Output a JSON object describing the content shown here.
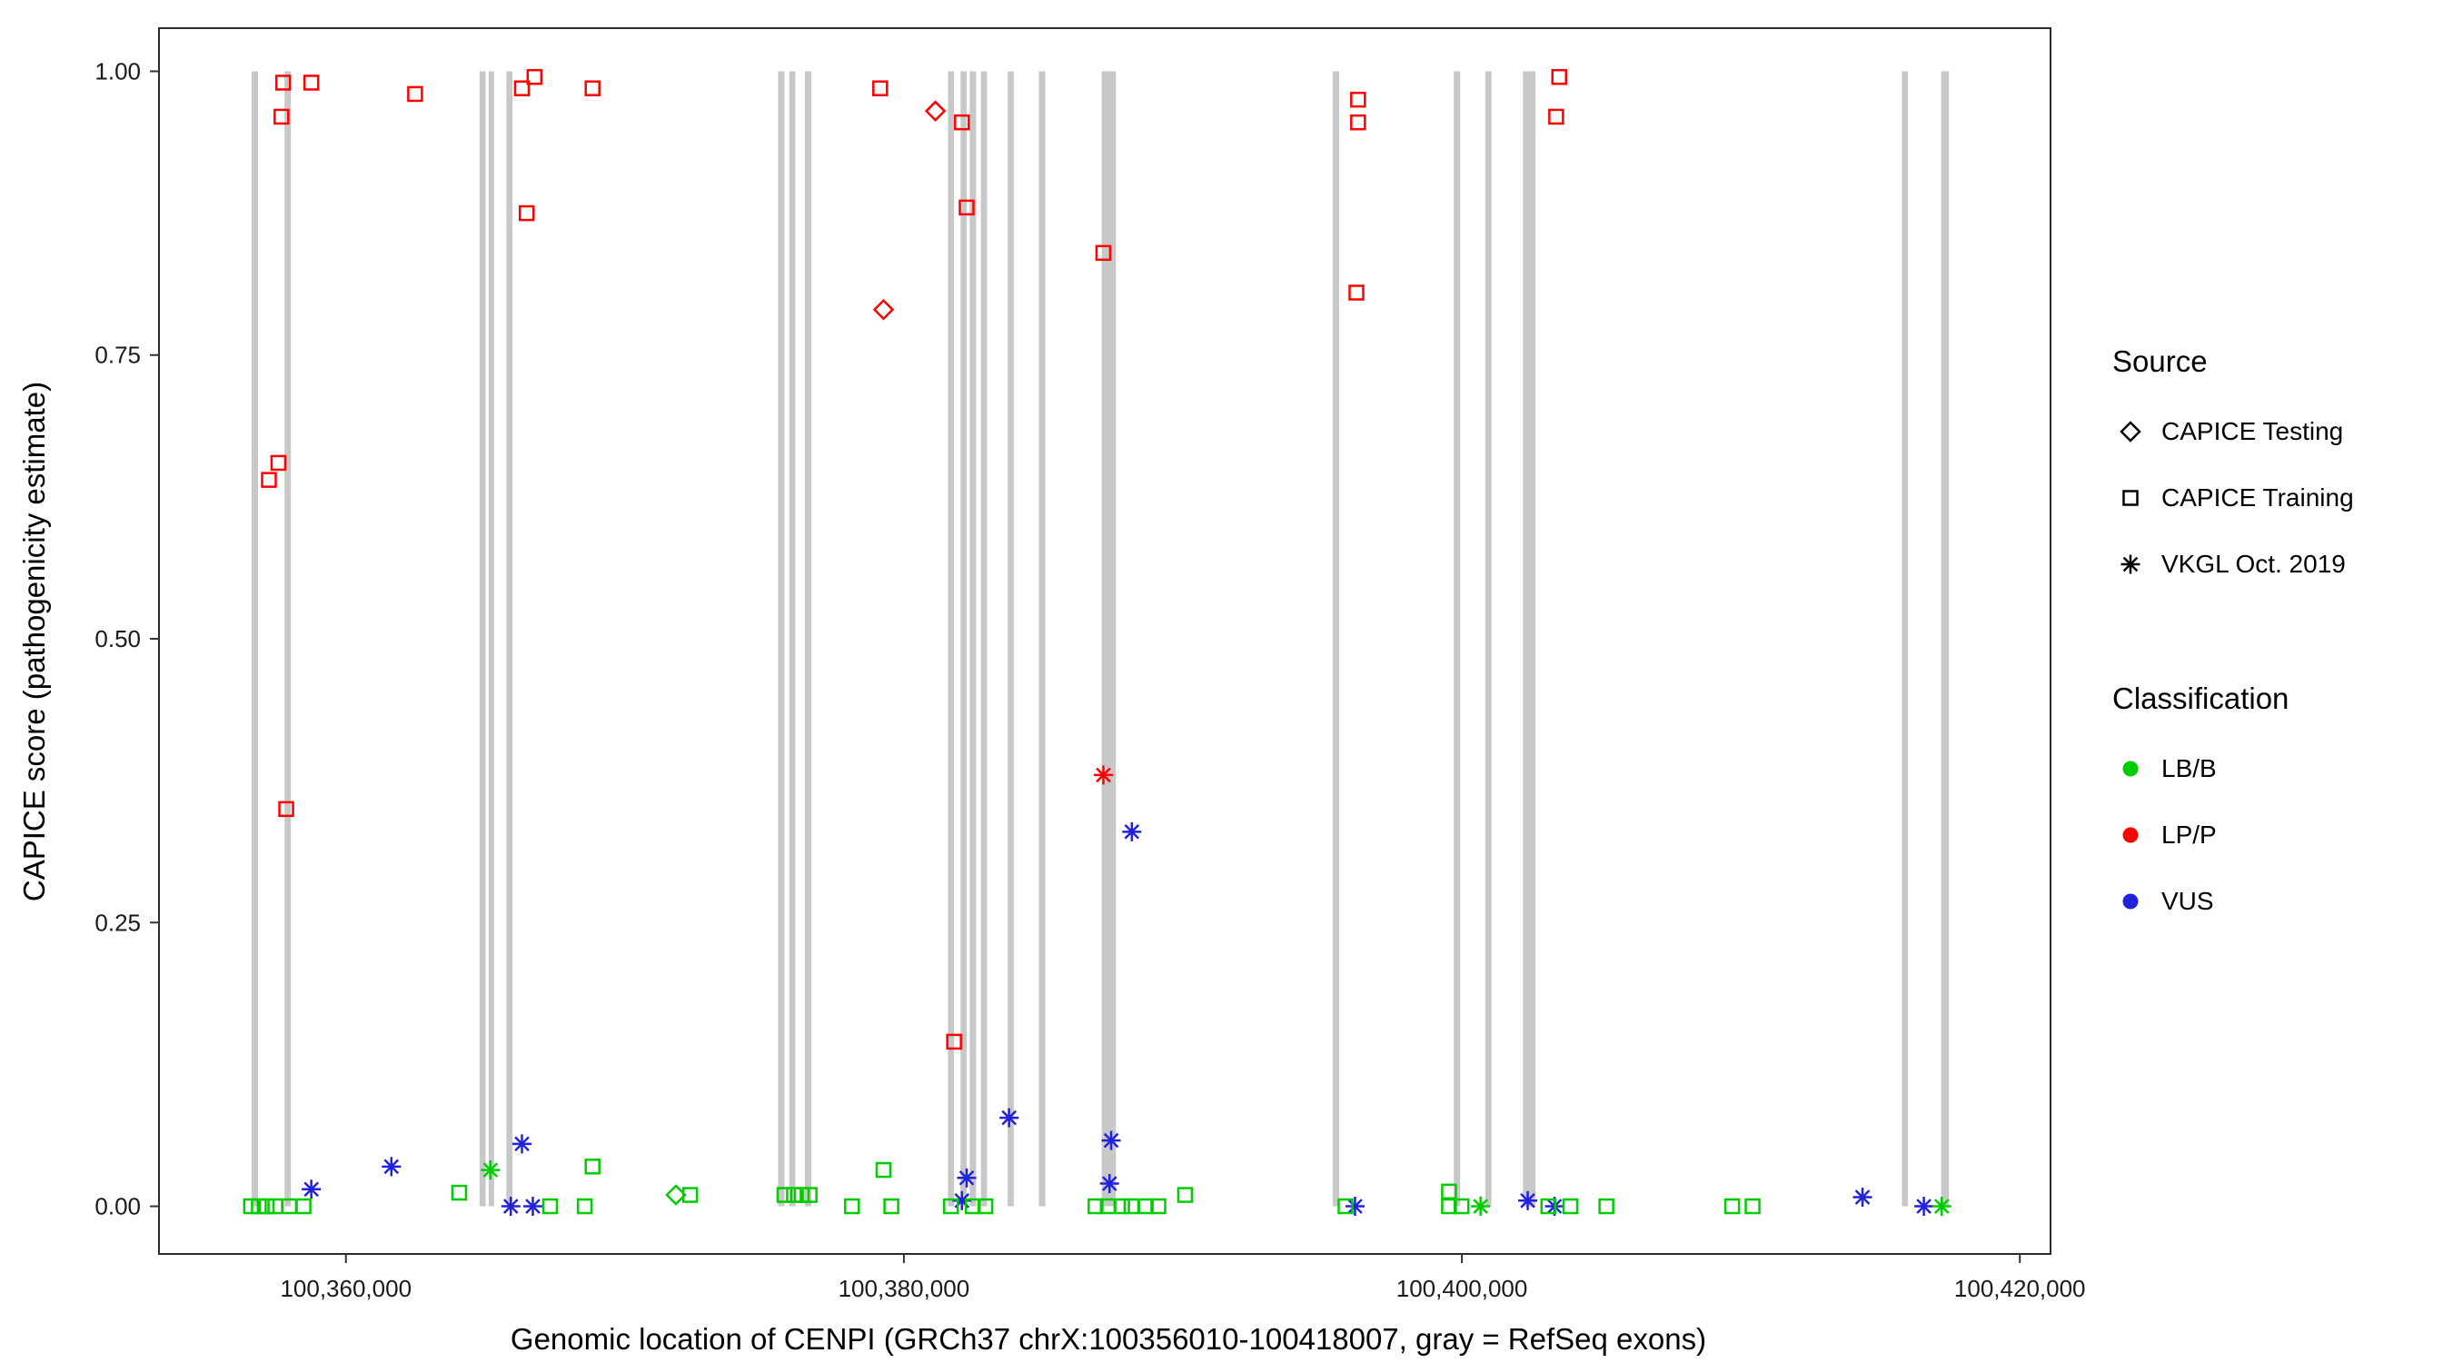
{
  "legend": {
    "source_title": "Source",
    "source_items": [
      {
        "label": "CAPICE Testing",
        "glyph": "diamond"
      },
      {
        "label": "CAPICE Training",
        "glyph": "square"
      },
      {
        "label": "VKGL Oct. 2019",
        "glyph": "asterisk"
      }
    ],
    "class_title": "Classification",
    "class_items": [
      {
        "label": "LB/B",
        "color": "#00CC00"
      },
      {
        "label": "LP/P",
        "color": "#FF0000"
      },
      {
        "label": "VUS",
        "color": "#2222DD"
      }
    ]
  },
  "chart_data": {
    "type": "scatter",
    "title": "",
    "xlabel": "Genomic location of CENPI (GRCh37 chrX:100356010-100418007, gray = RefSeq exons)",
    "ylabel": "CAPICE score (pathogenicity estimate)",
    "xlim": [
      100353300,
      100421100
    ],
    "ylim": [
      -0.042,
      1.038
    ],
    "grid": false,
    "legend_position": "right",
    "x_ticks": [
      {
        "value": 100360000,
        "label": "100,360,000"
      },
      {
        "value": 100380000,
        "label": "100,380,000"
      },
      {
        "value": 100400000,
        "label": "100,400,000"
      },
      {
        "value": 100420000,
        "label": "100,420,000"
      }
    ],
    "y_ticks": [
      {
        "value": 0.0,
        "label": "0.00"
      },
      {
        "value": 0.25,
        "label": "0.25"
      },
      {
        "value": 0.5,
        "label": "0.50"
      },
      {
        "value": 0.75,
        "label": "0.75"
      },
      {
        "value": 1.0,
        "label": "1.00"
      }
    ],
    "exon_color": "#C8C8C8",
    "exon_value_span": [
      0.0,
      1.0
    ],
    "class_colors": {
      "LB/B": "#00CC00",
      "LP/P": "#FF0000",
      "VUS": "#2222DD"
    },
    "exons": [
      {
        "start": 100356620,
        "end": 100356850
      },
      {
        "start": 100357800,
        "end": 100358030
      },
      {
        "start": 100364790,
        "end": 100365010
      },
      {
        "start": 100365130,
        "end": 100365300
      },
      {
        "start": 100365750,
        "end": 100365970
      },
      {
        "start": 100375490,
        "end": 100375720
      },
      {
        "start": 100375890,
        "end": 100376110
      },
      {
        "start": 100376450,
        "end": 100376680
      },
      {
        "start": 100381580,
        "end": 100381800
      },
      {
        "start": 100382030,
        "end": 100382250
      },
      {
        "start": 100382360,
        "end": 100382590
      },
      {
        "start": 100382760,
        "end": 100382980
      },
      {
        "start": 100383720,
        "end": 100383940
      },
      {
        "start": 100384840,
        "end": 100385070
      },
      {
        "start": 100387090,
        "end": 100387600
      },
      {
        "start": 100395370,
        "end": 100395600
      },
      {
        "start": 100399710,
        "end": 100399940
      },
      {
        "start": 100400840,
        "end": 100401060
      },
      {
        "start": 100402190,
        "end": 100402640
      },
      {
        "start": 100415770,
        "end": 100415990
      },
      {
        "start": 100417180,
        "end": 100417460
      }
    ],
    "points": [
      {
        "x": 100357750,
        "y": 0.99,
        "source": "CAPICE Training",
        "class": "LP/P"
      },
      {
        "x": 100358760,
        "y": 0.99,
        "source": "CAPICE Training",
        "class": "LP/P"
      },
      {
        "x": 100357690,
        "y": 0.96,
        "source": "CAPICE Training",
        "class": "LP/P"
      },
      {
        "x": 100357580,
        "y": 0.655,
        "source": "CAPICE Training",
        "class": "LP/P"
      },
      {
        "x": 100357240,
        "y": 0.64,
        "source": "CAPICE Training",
        "class": "LP/P"
      },
      {
        "x": 100357860,
        "y": 0.35,
        "source": "CAPICE Training",
        "class": "LP/P"
      },
      {
        "x": 100362480,
        "y": 0.98,
        "source": "CAPICE Training",
        "class": "LP/P"
      },
      {
        "x": 100366310,
        "y": 0.985,
        "source": "CAPICE Training",
        "class": "LP/P"
      },
      {
        "x": 100366760,
        "y": 0.995,
        "source": "CAPICE Training",
        "class": "LP/P"
      },
      {
        "x": 100366480,
        "y": 0.875,
        "source": "CAPICE Training",
        "class": "LP/P"
      },
      {
        "x": 100368840,
        "y": 0.985,
        "source": "CAPICE Training",
        "class": "LP/P"
      },
      {
        "x": 100379150,
        "y": 0.985,
        "source": "CAPICE Training",
        "class": "LP/P"
      },
      {
        "x": 100382080,
        "y": 0.955,
        "source": "CAPICE Training",
        "class": "LP/P"
      },
      {
        "x": 100382250,
        "y": 0.88,
        "source": "CAPICE Training",
        "class": "LP/P"
      },
      {
        "x": 100387150,
        "y": 0.84,
        "source": "CAPICE Training",
        "class": "LP/P"
      },
      {
        "x": 100381800,
        "y": 0.145,
        "source": "CAPICE Training",
        "class": "LP/P"
      },
      {
        "x": 100396280,
        "y": 0.975,
        "source": "CAPICE Training",
        "class": "LP/P"
      },
      {
        "x": 100396280,
        "y": 0.955,
        "source": "CAPICE Training",
        "class": "LP/P"
      },
      {
        "x": 100396220,
        "y": 0.805,
        "source": "CAPICE Training",
        "class": "LP/P"
      },
      {
        "x": 100403490,
        "y": 0.995,
        "source": "CAPICE Training",
        "class": "LP/P"
      },
      {
        "x": 100403380,
        "y": 0.96,
        "source": "CAPICE Training",
        "class": "LP/P"
      },
      {
        "x": 100379270,
        "y": 0.79,
        "source": "CAPICE Testing",
        "class": "LP/P"
      },
      {
        "x": 100381130,
        "y": 0.965,
        "source": "CAPICE Testing",
        "class": "LP/P"
      },
      {
        "x": 100387150,
        "y": 0.38,
        "source": "VKGL Oct. 2019",
        "class": "LP/P"
      },
      {
        "x": 100388170,
        "y": 0.33,
        "source": "VKGL Oct. 2019",
        "class": "VUS"
      },
      {
        "x": 100383770,
        "y": 0.078,
        "source": "VKGL Oct. 2019",
        "class": "VUS"
      },
      {
        "x": 100387430,
        "y": 0.058,
        "source": "VKGL Oct. 2019",
        "class": "VUS"
      },
      {
        "x": 100358760,
        "y": 0.015,
        "source": "VKGL Oct. 2019",
        "class": "VUS"
      },
      {
        "x": 100361630,
        "y": 0.035,
        "source": "VKGL Oct. 2019",
        "class": "VUS"
      },
      {
        "x": 100365910,
        "y": 0.0,
        "source": "VKGL Oct. 2019",
        "class": "VUS"
      },
      {
        "x": 100366700,
        "y": 0.0,
        "source": "VKGL Oct. 2019",
        "class": "VUS"
      },
      {
        "x": 100366310,
        "y": 0.055,
        "source": "VKGL Oct. 2019",
        "class": "VUS"
      },
      {
        "x": 100382250,
        "y": 0.025,
        "source": "VKGL Oct. 2019",
        "class": "VUS"
      },
      {
        "x": 100382080,
        "y": 0.005,
        "source": "VKGL Oct. 2019",
        "class": "VUS"
      },
      {
        "x": 100387370,
        "y": 0.02,
        "source": "VKGL Oct. 2019",
        "class": "VUS"
      },
      {
        "x": 100396170,
        "y": 0.0,
        "source": "VKGL Oct. 2019",
        "class": "VUS"
      },
      {
        "x": 100402360,
        "y": 0.005,
        "source": "VKGL Oct. 2019",
        "class": "VUS"
      },
      {
        "x": 100403320,
        "y": 0.0,
        "source": "VKGL Oct. 2019",
        "class": "VUS"
      },
      {
        "x": 100414360,
        "y": 0.008,
        "source": "VKGL Oct. 2019",
        "class": "VUS"
      },
      {
        "x": 100416560,
        "y": 0.0,
        "source": "VKGL Oct. 2019",
        "class": "VUS"
      },
      {
        "x": 100356600,
        "y": 0.0,
        "source": "CAPICE Training",
        "class": "LB/B"
      },
      {
        "x": 100356880,
        "y": 0.0,
        "source": "CAPICE Training",
        "class": "LB/B"
      },
      {
        "x": 100357160,
        "y": 0.0,
        "source": "CAPICE Training",
        "class": "LB/B"
      },
      {
        "x": 100357470,
        "y": 0.0,
        "source": "CAPICE Training",
        "class": "LB/B"
      },
      {
        "x": 100357970,
        "y": 0.0,
        "source": "CAPICE Training",
        "class": "LB/B"
      },
      {
        "x": 100358480,
        "y": 0.0,
        "source": "CAPICE Training",
        "class": "LB/B"
      },
      {
        "x": 100364060,
        "y": 0.012,
        "source": "CAPICE Training",
        "class": "LB/B"
      },
      {
        "x": 100367320,
        "y": 0.0,
        "source": "CAPICE Training",
        "class": "LB/B"
      },
      {
        "x": 100368560,
        "y": 0.0,
        "source": "CAPICE Training",
        "class": "LB/B"
      },
      {
        "x": 100368840,
        "y": 0.035,
        "source": "CAPICE Training",
        "class": "LB/B"
      },
      {
        "x": 100372340,
        "y": 0.01,
        "source": "CAPICE Training",
        "class": "LB/B"
      },
      {
        "x": 100375720,
        "y": 0.01,
        "source": "CAPICE Training",
        "class": "LB/B"
      },
      {
        "x": 100376060,
        "y": 0.01,
        "source": "CAPICE Training",
        "class": "LB/B"
      },
      {
        "x": 100376340,
        "y": 0.01,
        "source": "CAPICE Training",
        "class": "LB/B"
      },
      {
        "x": 100376620,
        "y": 0.01,
        "source": "CAPICE Training",
        "class": "LB/B"
      },
      {
        "x": 100378140,
        "y": 0.0,
        "source": "CAPICE Training",
        "class": "LB/B"
      },
      {
        "x": 100379270,
        "y": 0.032,
        "source": "CAPICE Training",
        "class": "LB/B"
      },
      {
        "x": 100379550,
        "y": 0.0,
        "source": "CAPICE Training",
        "class": "LB/B"
      },
      {
        "x": 100381690,
        "y": 0.0,
        "source": "CAPICE Training",
        "class": "LB/B"
      },
      {
        "x": 100382470,
        "y": 0.0,
        "source": "CAPICE Training",
        "class": "LB/B"
      },
      {
        "x": 100382920,
        "y": 0.0,
        "source": "CAPICE Training",
        "class": "LB/B"
      },
      {
        "x": 100386870,
        "y": 0.0,
        "source": "CAPICE Training",
        "class": "LB/B"
      },
      {
        "x": 100387310,
        "y": 0.0,
        "source": "CAPICE Training",
        "class": "LB/B"
      },
      {
        "x": 100387820,
        "y": 0.0,
        "source": "CAPICE Training",
        "class": "LB/B"
      },
      {
        "x": 100388160,
        "y": 0.0,
        "source": "CAPICE Training",
        "class": "LB/B"
      },
      {
        "x": 100388670,
        "y": 0.0,
        "source": "CAPICE Training",
        "class": "LB/B"
      },
      {
        "x": 100389120,
        "y": 0.0,
        "source": "CAPICE Training",
        "class": "LB/B"
      },
      {
        "x": 100390080,
        "y": 0.01,
        "source": "CAPICE Training",
        "class": "LB/B"
      },
      {
        "x": 100395830,
        "y": 0.0,
        "source": "CAPICE Training",
        "class": "LB/B"
      },
      {
        "x": 100399540,
        "y": 0.013,
        "source": "CAPICE Training",
        "class": "LB/B"
      },
      {
        "x": 100399540,
        "y": 0.0,
        "source": "CAPICE Training",
        "class": "LB/B"
      },
      {
        "x": 100399990,
        "y": 0.0,
        "source": "CAPICE Training",
        "class": "LB/B"
      },
      {
        "x": 100403100,
        "y": 0.0,
        "source": "CAPICE Training",
        "class": "LB/B"
      },
      {
        "x": 100403890,
        "y": 0.0,
        "source": "CAPICE Training",
        "class": "LB/B"
      },
      {
        "x": 100405180,
        "y": 0.0,
        "source": "CAPICE Training",
        "class": "LB/B"
      },
      {
        "x": 100409690,
        "y": 0.0,
        "source": "CAPICE Training",
        "class": "LB/B"
      },
      {
        "x": 100410420,
        "y": 0.0,
        "source": "CAPICE Training",
        "class": "LB/B"
      },
      {
        "x": 100371830,
        "y": 0.01,
        "source": "CAPICE Testing",
        "class": "LB/B"
      },
      {
        "x": 100365180,
        "y": 0.032,
        "source": "VKGL Oct. 2019",
        "class": "LB/B"
      },
      {
        "x": 100400670,
        "y": 0.0,
        "source": "VKGL Oct. 2019",
        "class": "LB/B"
      },
      {
        "x": 100417200,
        "y": 0.0,
        "source": "VKGL Oct. 2019",
        "class": "LB/B"
      }
    ]
  }
}
